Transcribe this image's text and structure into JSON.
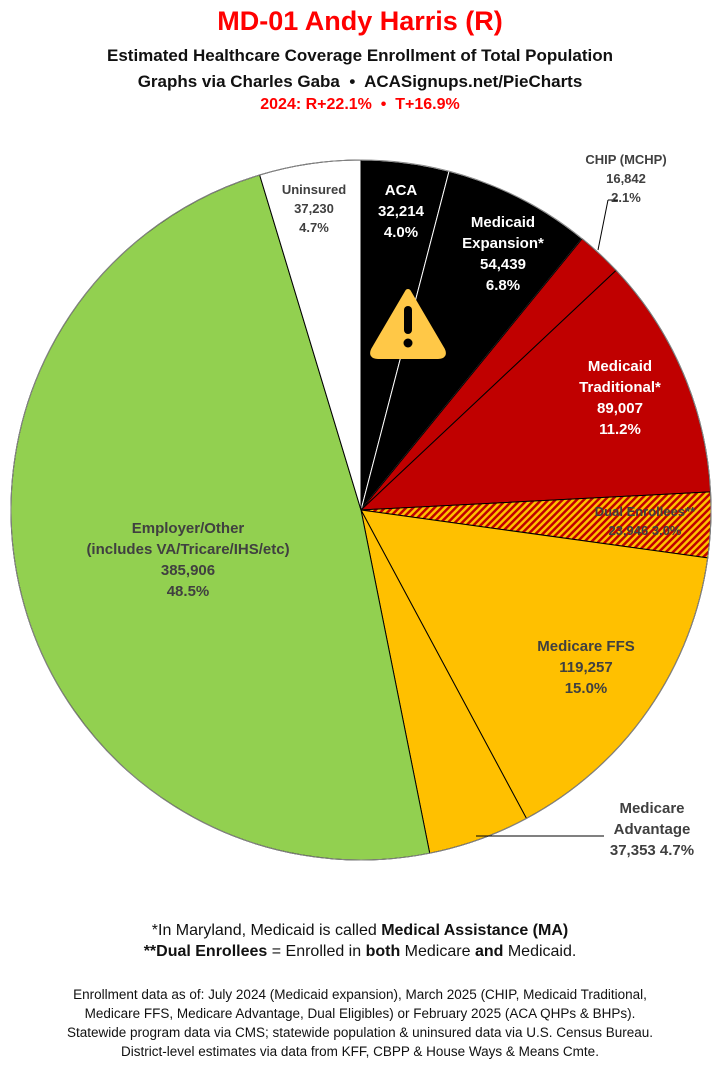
{
  "header": {
    "title": "MD-01 Andy Harris (R)",
    "subtitle": "Estimated Healthcare Coverage Enrollment of Total Population",
    "credit": "Graphs via Charles Gaba  •  ACASignups.net/PieCharts",
    "margins": "2024: R+22.1%  •  T+16.9%"
  },
  "chart_data": {
    "type": "pie",
    "start": "12 o'clock, clockwise",
    "slices": [
      {
        "label": "ACA",
        "value": 32214,
        "pct": "4.0%",
        "color": "#000000"
      },
      {
        "label": "Medicaid Expansion*",
        "value": 54439,
        "pct": "6.8%",
        "color": "#000000"
      },
      {
        "label": "CHIP (MCHP)",
        "value": 16842,
        "pct": "2.1%",
        "color": "#c00000"
      },
      {
        "label": "Medicaid Traditional*",
        "value": 89007,
        "pct": "11.2%",
        "color": "#c00000"
      },
      {
        "label": "Dual Enrollees**",
        "value": 23946,
        "pct": "3.0%",
        "color": "hatched #c00000/#ffc000"
      },
      {
        "label": "Medicare FFS",
        "value": 119257,
        "pct": "15.0%",
        "color": "#ffc000"
      },
      {
        "label": "Medicare Advantage",
        "value": 37353,
        "pct": "4.7%",
        "color": "#ffc000"
      },
      {
        "label": "Employer/Other (includes VA/Tricare/IHS/etc)",
        "value": 385906,
        "pct": "48.5%",
        "color": "#92d050"
      },
      {
        "label": "Uninsured",
        "value": 37230,
        "pct": "4.7%",
        "color": "#ffffff"
      }
    ],
    "labels": {
      "aca": [
        "ACA",
        "32,214",
        "4.0%"
      ],
      "expansion": [
        "Medicaid",
        "Expansion*",
        "54,439",
        "6.8%"
      ],
      "chip": [
        "CHIP (MCHP)",
        "16,842",
        "2.1%"
      ],
      "traditional": [
        "Medicaid",
        "Traditional*",
        "89,007",
        "11.2%"
      ],
      "dual": [
        "Dual Enrollees**",
        "23,946 3.0%"
      ],
      "ffs": [
        "Medicare FFS",
        "119,257",
        "15.0%"
      ],
      "advantage": [
        "Medicare",
        "Advantage",
        "37,353 4.7%"
      ],
      "employer": [
        "Employer/Other",
        "(includes VA/Tricare/IHS/etc)",
        "385,906",
        "48.5%"
      ],
      "uninsured": [
        "Uninsured",
        "37,230",
        "4.7%"
      ]
    },
    "warning_icon": "warning-triangle-icon"
  },
  "footnotes": {
    "line1_pre": "*In Maryland, Medicaid is called ",
    "line1_bold": "Medical Assistance (MA)",
    "line2_bold1": "**Dual Enrollees",
    "line2_mid": " = Enrolled in ",
    "line2_bold2": "both",
    "line2_mid2": " Medicare ",
    "line2_bold3": "and",
    "line2_end": " Medicaid.",
    "sources": [
      "Enrollment data as of: July 2024 (Medicaid expansion), March 2025 (CHIP, Medicaid Traditional,",
      "Medicare FFS, Medicare Advantage, Dual Eligibles) or February 2025 (ACA QHPs & BHPs).",
      "Statewide program data via CMS; statewide population & uninsured data via U.S. Census Bureau.",
      "District-level estimates via data from KFF, CBPP & House Ways & Means Cmte."
    ]
  }
}
